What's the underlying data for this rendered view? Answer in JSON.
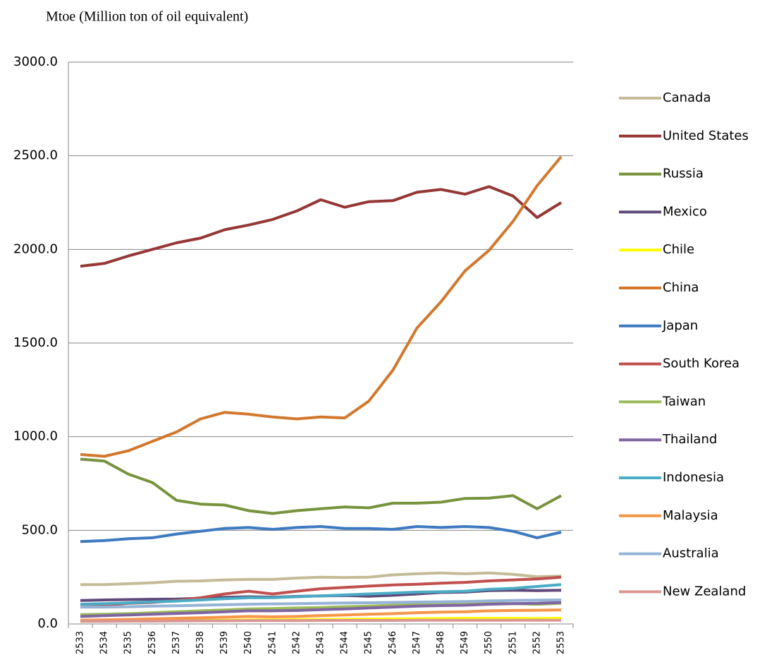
{
  "chart_data": {
    "type": "line",
    "title": "Mtoe (Million ton of oil equivalent)",
    "categories": [
      "2533",
      "2534",
      "2535",
      "2536",
      "2537",
      "2538",
      "2539",
      "2540",
      "2541",
      "2542",
      "2543",
      "2544",
      "2545",
      "2546",
      "2547",
      "2548",
      "2549",
      "2550",
      "2551",
      "2552",
      "2553"
    ],
    "ylim": [
      0,
      3000
    ],
    "yticks": [
      {
        "value": 0,
        "label": "0.0"
      },
      {
        "value": 500,
        "label": "500.0"
      },
      {
        "value": 1000,
        "label": "1000.0"
      },
      {
        "value": 1500,
        "label": "1500.0"
      },
      {
        "value": 2000,
        "label": "2000.0"
      },
      {
        "value": 2500,
        "label": "2500.0"
      },
      {
        "value": 3000,
        "label": "3000.0"
      }
    ],
    "grid": true,
    "legend": "right",
    "series": [
      {
        "name": "Canada",
        "color": "#c4bc96",
        "values": [
          210,
          210,
          215,
          220,
          228,
          230,
          235,
          238,
          238,
          245,
          250,
          248,
          250,
          262,
          268,
          272,
          268,
          272,
          265,
          252,
          255
        ]
      },
      {
        "name": "United States",
        "color": "#953735",
        "values": [
          1910,
          1925,
          1965,
          2000,
          2035,
          2060,
          2105,
          2130,
          2160,
          2205,
          2265,
          2225,
          2255,
          2260,
          2305,
          2320,
          2295,
          2335,
          2285,
          2170,
          2250
        ]
      },
      {
        "name": "Russia",
        "color": "#77933c",
        "values": [
          880,
          870,
          800,
          755,
          660,
          640,
          635,
          605,
          590,
          605,
          615,
          625,
          620,
          645,
          645,
          650,
          670,
          672,
          685,
          615,
          685
        ]
      },
      {
        "name": "Mexico",
        "color": "#604a7b",
        "values": [
          125,
          128,
          130,
          132,
          133,
          137,
          142,
          145,
          143,
          147,
          150,
          152,
          148,
          153,
          160,
          168,
          170,
          178,
          180,
          178,
          180
        ]
      },
      {
        "name": "Chile",
        "color": "#ffff00",
        "values": [
          14,
          15,
          16,
          17,
          18,
          19,
          20,
          21,
          22,
          23,
          24,
          25,
          26,
          27,
          28,
          29,
          30,
          30,
          30,
          29,
          30
        ]
      },
      {
        "name": "China",
        "color": "#d2782e",
        "values": [
          905,
          895,
          925,
          975,
          1025,
          1095,
          1130,
          1120,
          1105,
          1095,
          1105,
          1100,
          1190,
          1355,
          1580,
          1720,
          1885,
          1995,
          2150,
          2340,
          2495
        ]
      },
      {
        "name": "Japan",
        "color": "#3e7ac0",
        "values": [
          440,
          445,
          455,
          460,
          480,
          495,
          510,
          515,
          505,
          515,
          520,
          510,
          510,
          505,
          520,
          515,
          520,
          515,
          495,
          460,
          490
        ]
      },
      {
        "name": "South Korea",
        "color": "#c0504d",
        "values": [
          95,
          100,
          110,
          115,
          125,
          140,
          160,
          175,
          160,
          175,
          188,
          195,
          202,
          208,
          212,
          218,
          222,
          230,
          235,
          240,
          250
        ]
      },
      {
        "name": "Taiwan",
        "color": "#9bbb59",
        "values": [
          50,
          52,
          55,
          60,
          65,
          70,
          75,
          80,
          82,
          85,
          88,
          92,
          95,
          100,
          103,
          105,
          108,
          110,
          108,
          105,
          110
        ]
      },
      {
        "name": "Thailand",
        "color": "#8064a2",
        "values": [
          40,
          44,
          48,
          52,
          56,
          60,
          65,
          70,
          70,
          72,
          76,
          80,
          85,
          90,
          95,
          98,
          100,
          105,
          108,
          110,
          115
        ]
      },
      {
        "name": "Indonesia",
        "color": "#4bacc6",
        "values": [
          105,
          108,
          112,
          118,
          122,
          128,
          135,
          140,
          140,
          145,
          150,
          155,
          160,
          165,
          170,
          172,
          175,
          185,
          190,
          200,
          210
        ]
      },
      {
        "name": "Malaysia",
        "color": "#f79646",
        "values": [
          20,
          22,
          24,
          27,
          30,
          33,
          36,
          40,
          38,
          40,
          45,
          48,
          52,
          55,
          60,
          63,
          65,
          70,
          72,
          73,
          75
        ]
      },
      {
        "name": "Australia",
        "color": "#95b3d7",
        "values": [
          90,
          90,
          92,
          95,
          97,
          100,
          103,
          105,
          107,
          108,
          110,
          112,
          113,
          115,
          117,
          118,
          120,
          123,
          125,
          127,
          128
        ]
      },
      {
        "name": "New Zealand",
        "color": "#d99694",
        "values": [
          14,
          14,
          15,
          15,
          16,
          17,
          17,
          18,
          18,
          18,
          19,
          19,
          19,
          19,
          20,
          20,
          20,
          20,
          20,
          20,
          20
        ]
      }
    ]
  }
}
